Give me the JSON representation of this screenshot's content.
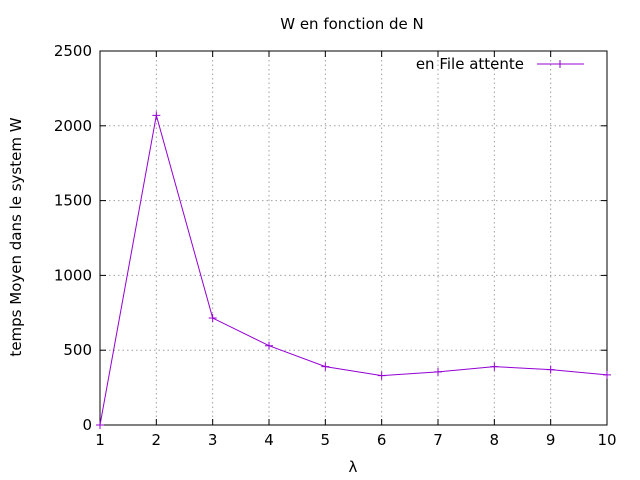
{
  "chart_data": {
    "type": "line",
    "title": "W en fonction de N",
    "xlabel": "λ",
    "ylabel": "temps Moyen dans le system W",
    "xlim": [
      1,
      10
    ],
    "ylim": [
      0,
      2500
    ],
    "xticks": [
      1,
      2,
      3,
      4,
      5,
      6,
      7,
      8,
      9,
      10
    ],
    "yticks": [
      0,
      500,
      1000,
      1500,
      2000,
      2500
    ],
    "grid": true,
    "legend_position": "top-right",
    "series": [
      {
        "name": "en File attente",
        "color": "#9400d3",
        "marker": "plus",
        "x": [
          1,
          2,
          3,
          4,
          5,
          6,
          7,
          8,
          9,
          10
        ],
        "y": [
          0,
          2070,
          715,
          530,
          390,
          330,
          355,
          390,
          370,
          335
        ]
      }
    ]
  }
}
